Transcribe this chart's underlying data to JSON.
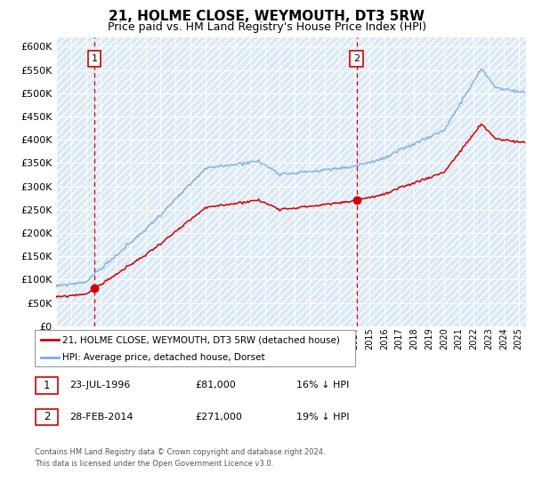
{
  "title": "21, HOLME CLOSE, WEYMOUTH, DT3 5RW",
  "subtitle": "Price paid vs. HM Land Registry's House Price Index (HPI)",
  "title_fontsize": 11,
  "subtitle_fontsize": 9,
  "hpi_color": "#7aaddc",
  "property_color": "#cc0000",
  "ylim": [
    0,
    620000
  ],
  "yticks": [
    0,
    50000,
    100000,
    150000,
    200000,
    250000,
    300000,
    350000,
    400000,
    450000,
    500000,
    550000,
    600000
  ],
  "sale1_date": 1996.56,
  "sale1_price": 81000,
  "sale2_date": 2014.16,
  "sale2_price": 271000,
  "legend_label1": "21, HOLME CLOSE, WEYMOUTH, DT3 5RW (detached house)",
  "legend_label2": "HPI: Average price, detached house, Dorset",
  "table_row1": [
    "1",
    "23-JUL-1996",
    "£81,000",
    "16% ↓ HPI"
  ],
  "table_row2": [
    "2",
    "28-FEB-2014",
    "£271,000",
    "19% ↓ HPI"
  ],
  "footer": "Contains HM Land Registry data © Crown copyright and database right 2024.\nThis data is licensed under the Open Government Licence v3.0.",
  "xmin": 1994.0,
  "xmax": 2025.5
}
